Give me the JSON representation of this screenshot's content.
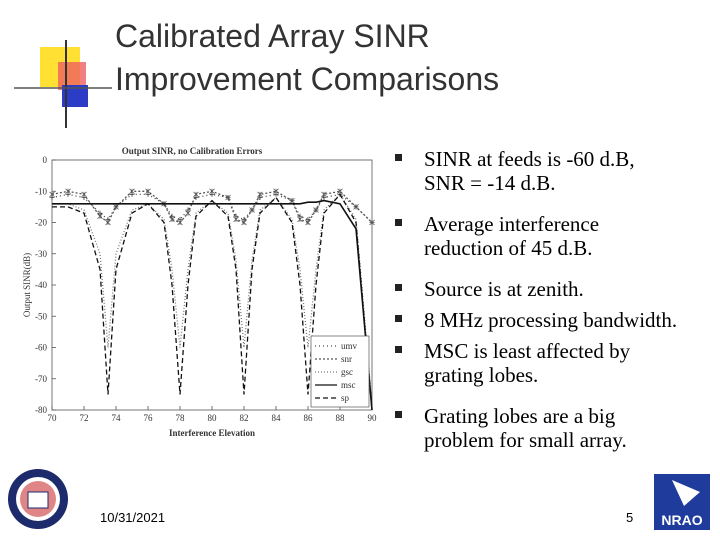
{
  "slide": {
    "title_lines": [
      "Calibrated Array SINR",
      "Improvement Comparisons"
    ],
    "bullets": [
      [
        "SINR at feeds is -60 d.B,",
        "SNR = -14 d.B."
      ],
      [
        "Average interference",
        "reduction of 45 d.B."
      ],
      [
        "Source is at zenith."
      ],
      [
        "8 MHz processing bandwidth."
      ],
      [
        "MSC is least affected by",
        "grating lobes."
      ],
      [
        "Grating lobes are a big",
        "problem for small array."
      ]
    ],
    "date": "10/31/2021",
    "page_number": "5",
    "logo_text": "NRAO"
  },
  "chart_data": {
    "type": "line",
    "title": "Output SINR, no Calibration Errors",
    "x_label": "Interference Elevation",
    "y_label": "Output SINR(dB)",
    "x": [
      70,
      71,
      72,
      73,
      73.5,
      74,
      75,
      76,
      77,
      77.5,
      78,
      78.5,
      79,
      80,
      81,
      81.5,
      82,
      82.5,
      83,
      84,
      85,
      85.5,
      86,
      86.5,
      87,
      88,
      89,
      90
    ],
    "series": [
      {
        "name": "umv",
        "color": "#444444",
        "dash": "1 3",
        "marker": "plus",
        "values": [
          -12,
          -11,
          -12,
          -17,
          -19,
          -15,
          -11,
          -11,
          -14,
          -18,
          -19,
          -16,
          -12,
          -11,
          -12,
          -18,
          -19,
          -16,
          -12,
          -11,
          -13,
          -18,
          -19,
          -16,
          -12,
          -11,
          -15,
          -20
        ]
      },
      {
        "name": "snr",
        "color": "#555555",
        "dash": "2 2",
        "marker": "star",
        "values": [
          -11,
          -10,
          -11,
          -18,
          -20,
          -15,
          -10,
          -10,
          -14,
          -19,
          -20,
          -17,
          -11,
          -10,
          -12,
          -19,
          -20,
          -16,
          -11,
          -10,
          -13,
          -19,
          -20,
          -16,
          -11,
          -10,
          -15,
          -20
        ]
      },
      {
        "name": "gsc",
        "color": "#777777",
        "dash": "1 2",
        "marker": "none",
        "values": [
          -14,
          -14,
          -16,
          -30,
          -60,
          -30,
          -16,
          -14,
          -19,
          -35,
          -60,
          -35,
          -17,
          -13,
          -17,
          -32,
          -60,
          -32,
          -16,
          -12,
          -19,
          -35,
          -60,
          -35,
          -16,
          -11,
          -19,
          -78
        ]
      },
      {
        "name": "msc",
        "color": "#111111",
        "dash": "none",
        "marker": "none",
        "values": [
          -14,
          -14,
          -14,
          -14,
          -14,
          -14,
          -14,
          -14,
          -14,
          -14,
          -14,
          -14,
          -14,
          -14,
          -14,
          -14,
          -14,
          -14,
          -14,
          -14,
          -14,
          -14,
          -13.5,
          -13.5,
          -13,
          -14,
          -22,
          -80
        ]
      },
      {
        "name": "sp",
        "color": "#111111",
        "dash": "5 3",
        "marker": "none",
        "values": [
          -15,
          -15,
          -17,
          -35,
          -75,
          -35,
          -17,
          -14,
          -20,
          -40,
          -75,
          -40,
          -18,
          -13,
          -18,
          -35,
          -75,
          -35,
          -17,
          -12,
          -20,
          -40,
          -75,
          -40,
          -17,
          -11,
          -20,
          -80
        ]
      }
    ],
    "xlim": [
      70,
      90
    ],
    "ylim": [
      -80,
      0
    ],
    "xticks": [
      70,
      72,
      74,
      76,
      78,
      80,
      82,
      84,
      86,
      88,
      90
    ],
    "yticks": [
      0,
      -10,
      -20,
      -30,
      -40,
      -50,
      -60,
      -70,
      -80
    ],
    "legend": "lower right"
  }
}
